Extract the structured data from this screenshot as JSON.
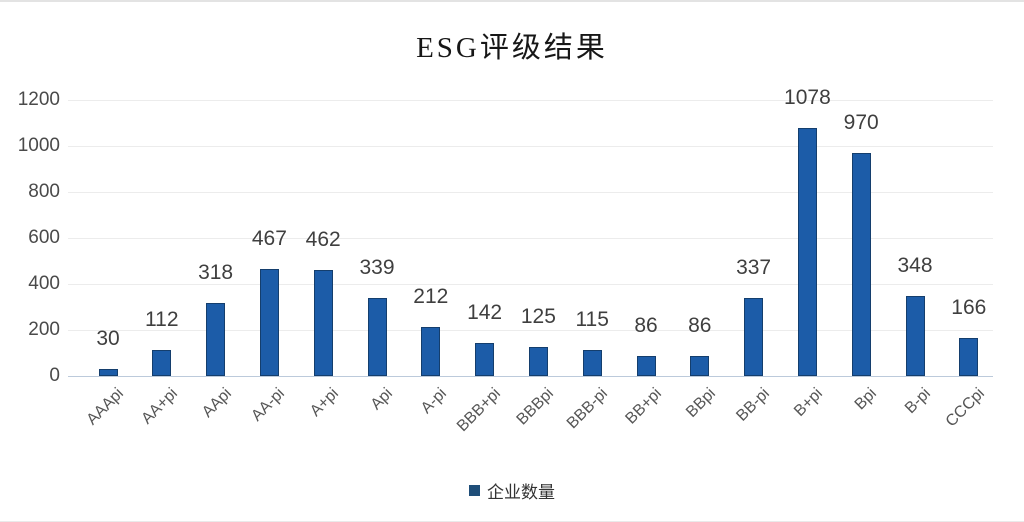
{
  "chart_data": {
    "type": "bar",
    "title": "ESG评级结果",
    "categories": [
      "AAApi",
      "AA+pi",
      "AApi",
      "AA-pi",
      "A+pi",
      "Api",
      "A-pi",
      "BBB+pi",
      "BBBpi",
      "BBB-pi",
      "BB+pi",
      "BBpi",
      "BB-pi",
      "B+pi",
      "Bpi",
      "B-pi",
      "CCCpi"
    ],
    "values": [
      30,
      112,
      318,
      467,
      462,
      339,
      212,
      142,
      125,
      115,
      86,
      86,
      337,
      1078,
      970,
      348,
      166
    ],
    "series_name": "企业数量",
    "y_ticks": [
      0,
      200,
      400,
      600,
      800,
      1000,
      1200
    ],
    "ylim": [
      0,
      1200
    ],
    "grid": true,
    "legend_position": "bottom",
    "bar_color": "#1c5ca8",
    "bar_border_color": "#143e6d",
    "legend_marker_color": "#1f4e79",
    "data_labels": true,
    "x_label_rotation_deg": -45
  }
}
